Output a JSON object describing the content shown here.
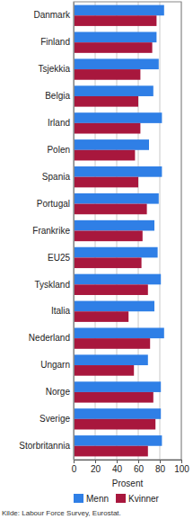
{
  "chart_data": {
    "type": "bar",
    "orientation": "horizontal",
    "categories": [
      "Danmark",
      "Finland",
      "Tsjekkia",
      "Belgia",
      "Irland",
      "Polen",
      "Spania",
      "Portugal",
      "Frankrike",
      "EU25",
      "Tyskland",
      "Italia",
      "Nederland",
      "Ungarn",
      "Norge",
      "Sverige",
      "Storbritannia"
    ],
    "series": [
      {
        "name": "Menn",
        "color": "#2f7fe6",
        "values": [
          84,
          77,
          79,
          74,
          82,
          70,
          82,
          79,
          75,
          78,
          81,
          75,
          84,
          69,
          81,
          81,
          82
        ]
      },
      {
        "name": "Kvinner",
        "color": "#a8173d",
        "values": [
          77,
          73,
          62,
          60,
          62,
          57,
          60,
          68,
          64,
          63,
          69,
          51,
          71,
          56,
          74,
          76,
          69
        ]
      }
    ],
    "xlabel": "Prosent",
    "xlim": [
      0,
      100
    ],
    "xticks": [
      0,
      20,
      40,
      60,
      80,
      100
    ],
    "grid": true,
    "legend": "bottom",
    "source": "Kilde: Labour Force Survey, Eurostat."
  }
}
